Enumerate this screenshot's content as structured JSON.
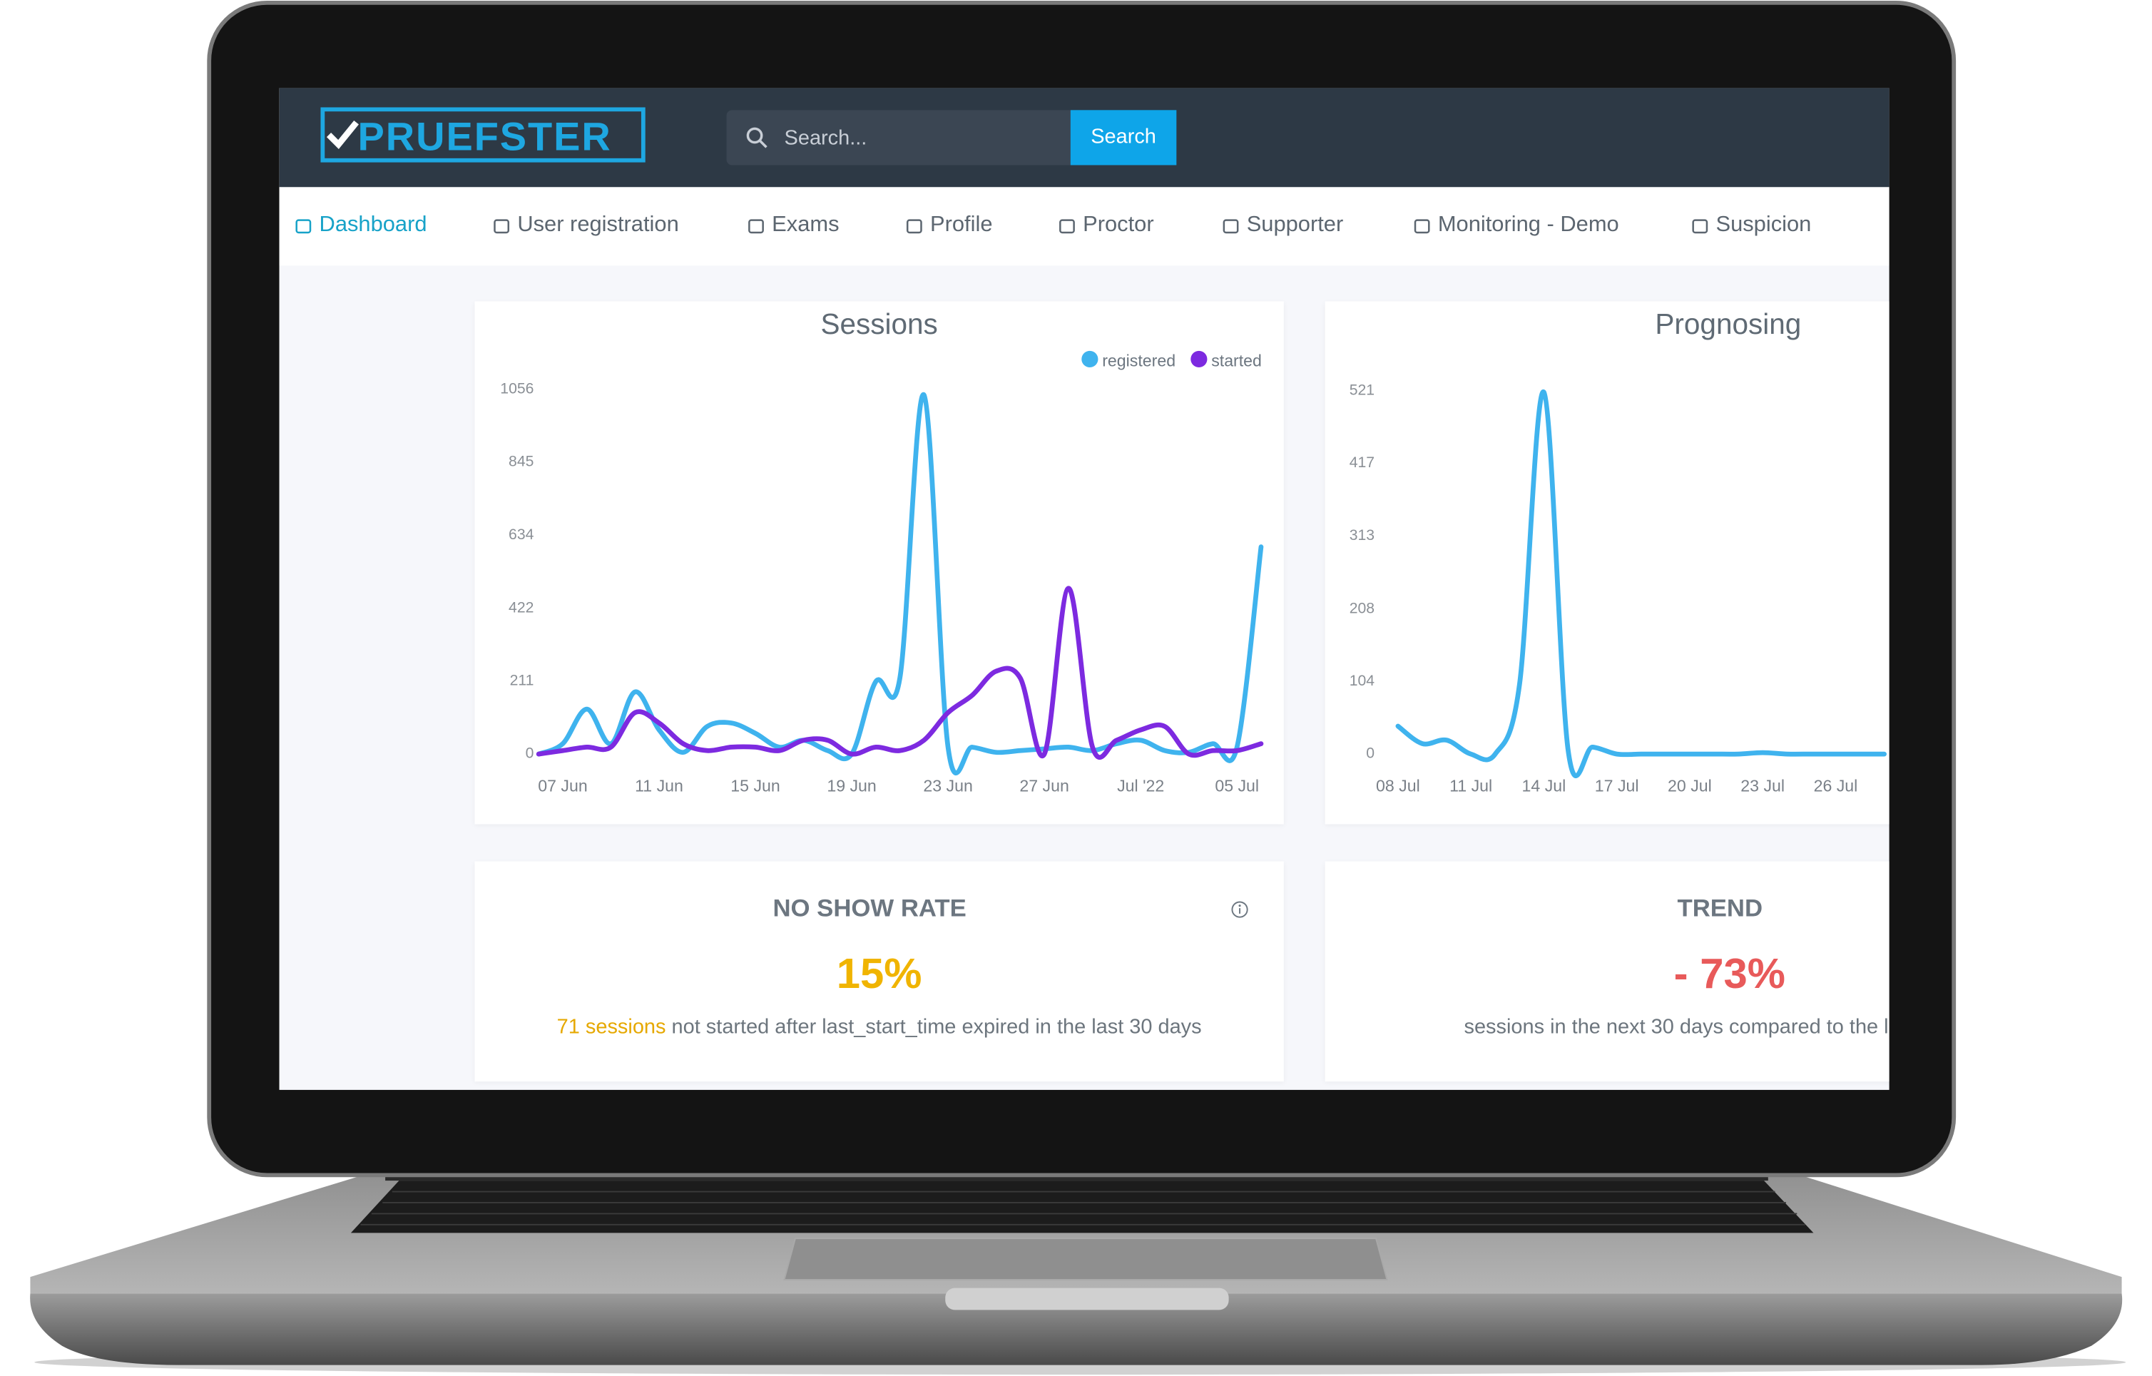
{
  "header": {
    "logo": "PRUEFSTER",
    "search_placeholder": "Search...",
    "search_button": "Search"
  },
  "nav": [
    "Dashboard",
    "User registration",
    "Exams",
    "Profile",
    "Proctor",
    "Supporter",
    "Monitoring - Demo",
    "Suspicion"
  ],
  "chart_data": [
    {
      "type": "line",
      "title": "Sessions",
      "categories": [
        null,
        "07 Jun",
        null,
        null,
        null,
        "11 Jun",
        null,
        null,
        null,
        "15 Jun",
        null,
        null,
        null,
        "19 Jun",
        null,
        null,
        null,
        "23 Jun",
        null,
        null,
        null,
        "27 Jun",
        null,
        null,
        null,
        "Jul '22",
        null,
        null,
        null,
        "05 Jul",
        null
      ],
      "series": [
        {
          "name": "registered",
          "color": "#3fb3ee",
          "values": [
            0,
            30,
            130,
            30,
            180,
            70,
            5,
            80,
            90,
            60,
            20,
            40,
            10,
            0,
            210,
            220,
            1040,
            20,
            20,
            5,
            10,
            15,
            20,
            10,
            30,
            40,
            10,
            5,
            30,
            20,
            600
          ]
        },
        {
          "name": "started",
          "color": "#7d2ae0",
          "values": [
            0,
            10,
            20,
            20,
            120,
            90,
            30,
            10,
            20,
            20,
            10,
            40,
            40,
            0,
            20,
            10,
            40,
            120,
            170,
            240,
            220,
            0,
            480,
            20,
            40,
            70,
            80,
            0,
            10,
            10,
            30
          ]
        }
      ],
      "ylim": [
        0,
        1056
      ],
      "yticks": [
        0,
        211,
        422,
        634,
        845,
        1056
      ]
    },
    {
      "type": "line",
      "title": "Prognosing",
      "categories": [
        "08 Jul",
        null,
        null,
        "11 Jul",
        null,
        null,
        "14 Jul",
        null,
        null,
        "17 Jul",
        null,
        null,
        "20 Jul",
        null,
        null,
        "23 Jul",
        null,
        null,
        "26 Jul",
        null,
        null
      ],
      "values": [
        40,
        15,
        20,
        0,
        0,
        100,
        519,
        5,
        10,
        0,
        0,
        0,
        0,
        0,
        0,
        2,
        0,
        0,
        0,
        0,
        0
      ],
      "color": "#3fb3ee",
      "ylim": [
        0,
        521
      ],
      "yticks": [
        0,
        104,
        208,
        313,
        417,
        521
      ]
    }
  ],
  "cards": [
    {
      "title": "NO SHOW RATE",
      "value": "15%",
      "highlight": "71 sessions",
      "text": "not started after last_start_time expired in the last 30 days"
    },
    {
      "title": "TREND",
      "value": "- 73%",
      "text": "sessions in the next 30 days compared to the l"
    }
  ]
}
